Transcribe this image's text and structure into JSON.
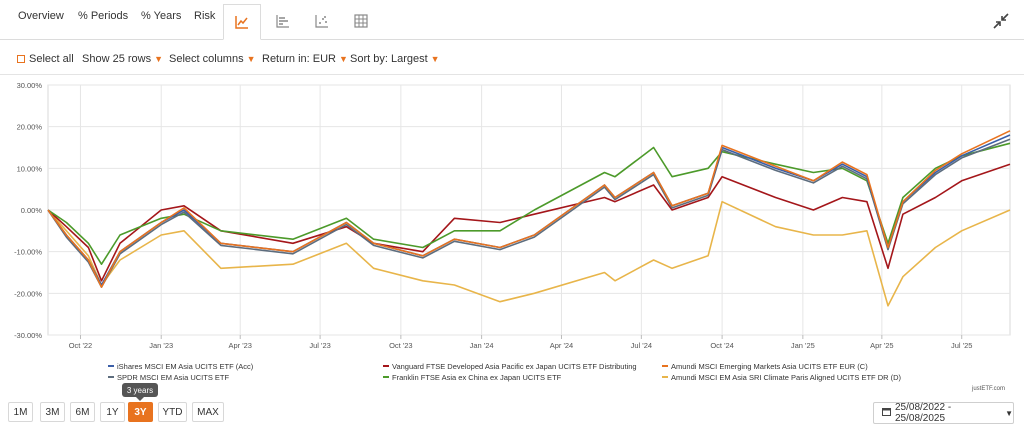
{
  "tabs": {
    "overview": "Overview",
    "periods": "% Periods",
    "years": "% Years",
    "risk": "Risk",
    "icons": [
      "line-chart-icon",
      "bar-chart-icon",
      "scatter-icon",
      "table-icon"
    ]
  },
  "toolbar": {
    "select_all": "Select all",
    "show_rows": "Show 25 rows",
    "select_columns": "Select columns",
    "return_in": "Return in: EUR",
    "sort_by": "Sort by: Largest"
  },
  "colors": {
    "accent": "#e8731f",
    "series": [
      "#3b5fa8",
      "#5d6d7e",
      "#a4161a",
      "#4c9a2a",
      "#e8731f",
      "#e8b54a"
    ]
  },
  "chart_data": {
    "type": "line",
    "title": "",
    "xlabel": "",
    "ylabel": "",
    "ylim": [
      -30,
      30
    ],
    "yticks": [
      30,
      20,
      10,
      0,
      -10,
      -20,
      -30
    ],
    "ytick_labels": [
      "30.00%",
      "20.00%",
      "10.00%",
      "0.00%",
      "-10.00%",
      "-20.00%",
      "-30.00%"
    ],
    "xlim": [
      "2022-08-25",
      "2025-08-25"
    ],
    "xticks": [
      "2022-10-01",
      "2023-01-01",
      "2023-04-01",
      "2023-07-01",
      "2023-10-01",
      "2024-01-01",
      "2024-04-01",
      "2024-07-01",
      "2024-10-01",
      "2025-01-01",
      "2025-04-01",
      "2025-07-01"
    ],
    "xtick_labels": [
      "Oct '22",
      "Jan '23",
      "Apr '23",
      "Jul '23",
      "Oct '23",
      "Jan '24",
      "Apr '24",
      "Jul '24",
      "Oct '24",
      "Jan '25",
      "Apr '25",
      "Jul '25"
    ],
    "grid": true,
    "legend": "bottom",
    "series": [
      {
        "name": "iShares MSCI EM Asia UCITS ETF (Acc)",
        "color": "#3b5fa8",
        "x": [
          "2022-08-25",
          "2022-09-15",
          "2022-10-10",
          "2022-10-25",
          "2022-11-15",
          "2023-01-01",
          "2023-01-27",
          "2023-03-10",
          "2023-05-31",
          "2023-07-31",
          "2023-08-31",
          "2023-10-26",
          "2023-12-01",
          "2024-01-22",
          "2024-03-01",
          "2024-05-20",
          "2024-06-01",
          "2024-07-15",
          "2024-08-05",
          "2024-09-15",
          "2024-10-01",
          "2024-12-01",
          "2025-01-13",
          "2025-02-15",
          "2025-03-15",
          "2025-04-08",
          "2025-04-25",
          "2025-06-01",
          "2025-07-01",
          "2025-08-25"
        ],
        "y": [
          0,
          -6,
          -12,
          -18,
          -10,
          -3,
          0,
          -8,
          -10,
          -3,
          -8,
          -11,
          -7,
          -9,
          -6,
          6,
          3,
          9,
          1,
          4,
          15,
          10,
          7,
          11,
          8,
          -9,
          2,
          9,
          13,
          18
        ]
      },
      {
        "name": "SPDR MSCI EM Asia UCITS ETF",
        "color": "#5d6d7e",
        "x": [
          "2022-08-25",
          "2022-09-15",
          "2022-10-10",
          "2022-10-25",
          "2022-11-15",
          "2023-01-01",
          "2023-01-27",
          "2023-03-10",
          "2023-05-31",
          "2023-07-31",
          "2023-08-31",
          "2023-10-26",
          "2023-12-01",
          "2024-01-22",
          "2024-03-01",
          "2024-05-20",
          "2024-06-01",
          "2024-07-15",
          "2024-08-05",
          "2024-09-15",
          "2024-10-01",
          "2024-12-01",
          "2025-01-13",
          "2025-02-15",
          "2025-03-15",
          "2025-04-08",
          "2025-04-25",
          "2025-06-01",
          "2025-07-01",
          "2025-08-25"
        ],
        "y": [
          0,
          -6.5,
          -12.5,
          -18.5,
          -10.5,
          -3.5,
          -0.5,
          -8.5,
          -10.5,
          -3.5,
          -8.5,
          -11.5,
          -7.5,
          -9.5,
          -6.5,
          5.5,
          2.5,
          8.5,
          0.5,
          3.5,
          14.5,
          9.5,
          6.5,
          10.5,
          7.5,
          -9.5,
          1.5,
          8.5,
          12.5,
          17
        ]
      },
      {
        "name": "Vanguard FTSE Developed Asia Pacific ex Japan UCITS ETF Distributing",
        "color": "#a4161a",
        "x": [
          "2022-08-25",
          "2022-09-15",
          "2022-10-10",
          "2022-10-25",
          "2022-11-15",
          "2023-01-01",
          "2023-01-27",
          "2023-03-10",
          "2023-05-31",
          "2023-07-31",
          "2023-08-31",
          "2023-10-26",
          "2023-12-01",
          "2024-01-22",
          "2024-03-01",
          "2024-05-20",
          "2024-06-01",
          "2024-07-15",
          "2024-08-05",
          "2024-09-15",
          "2024-10-01",
          "2024-12-01",
          "2025-01-13",
          "2025-02-15",
          "2025-03-15",
          "2025-04-08",
          "2025-04-25",
          "2025-06-01",
          "2025-07-01",
          "2025-08-25"
        ],
        "y": [
          0,
          -4,
          -9,
          -17,
          -8,
          0,
          1,
          -5,
          -8,
          -4,
          -8,
          -10,
          -2,
          -3,
          -1,
          3,
          2,
          6,
          0,
          3,
          8,
          3,
          0,
          3,
          2,
          -14,
          -1,
          3,
          7,
          11
        ]
      },
      {
        "name": "Franklin FTSE Asia ex China ex Japan UCITS ETF",
        "color": "#4c9a2a",
        "x": [
          "2022-08-25",
          "2022-09-15",
          "2022-10-10",
          "2022-10-25",
          "2022-11-15",
          "2023-01-01",
          "2023-01-27",
          "2023-03-10",
          "2023-05-31",
          "2023-07-31",
          "2023-08-31",
          "2023-10-26",
          "2023-12-01",
          "2024-01-22",
          "2024-03-01",
          "2024-05-20",
          "2024-06-01",
          "2024-07-15",
          "2024-08-05",
          "2024-09-15",
          "2024-10-01",
          "2024-12-01",
          "2025-01-13",
          "2025-02-15",
          "2025-03-15",
          "2025-04-08",
          "2025-04-25",
          "2025-06-01",
          "2025-07-01",
          "2025-08-25"
        ],
        "y": [
          0,
          -3,
          -8,
          -13,
          -6,
          -2,
          -1,
          -5,
          -7,
          -2,
          -7,
          -9,
          -5,
          -5,
          0,
          9,
          8,
          15,
          8,
          10,
          14,
          11,
          9,
          10,
          7,
          -8,
          3,
          10,
          13,
          16
        ]
      },
      {
        "name": "Amundi MSCI Emerging Markets Asia UCITS ETF EUR (C)",
        "color": "#e8731f",
        "x": [
          "2022-08-25",
          "2022-09-15",
          "2022-10-10",
          "2022-10-25",
          "2022-11-15",
          "2023-01-01",
          "2023-01-27",
          "2023-03-10",
          "2023-05-31",
          "2023-07-31",
          "2023-08-31",
          "2023-10-26",
          "2023-12-01",
          "2024-01-22",
          "2024-03-01",
          "2024-05-20",
          "2024-06-01",
          "2024-07-15",
          "2024-08-05",
          "2024-09-15",
          "2024-10-01",
          "2024-12-01",
          "2025-01-13",
          "2025-02-15",
          "2025-03-15",
          "2025-04-08",
          "2025-04-25",
          "2025-06-01",
          "2025-07-01",
          "2025-08-25"
        ],
        "y": [
          0,
          -6,
          -12,
          -18.5,
          -10,
          -3,
          0.5,
          -8,
          -10,
          -3,
          -8,
          -11,
          -7,
          -9,
          -6,
          6,
          3,
          9,
          1,
          4,
          15.5,
          10.5,
          7,
          11.5,
          8.5,
          -9,
          2,
          9.5,
          13.5,
          19
        ]
      },
      {
        "name": "Amundi MSCI EM Asia SRI Climate Paris Aligned UCITS ETF DR (D)",
        "color": "#e8b54a",
        "x": [
          "2022-08-25",
          "2022-09-15",
          "2022-10-10",
          "2022-10-25",
          "2022-11-15",
          "2023-01-01",
          "2023-01-27",
          "2023-03-10",
          "2023-05-31",
          "2023-07-31",
          "2023-08-31",
          "2023-10-26",
          "2023-12-01",
          "2024-01-22",
          "2024-03-01",
          "2024-05-20",
          "2024-06-01",
          "2024-07-15",
          "2024-08-05",
          "2024-09-15",
          "2024-10-01",
          "2024-12-01",
          "2025-01-13",
          "2025-02-15",
          "2025-03-15",
          "2025-04-08",
          "2025-04-25",
          "2025-06-01",
          "2025-07-01",
          "2025-08-25"
        ],
        "y": [
          0,
          -5,
          -11,
          -18,
          -12,
          -6,
          -5,
          -14,
          -13,
          -8,
          -14,
          -17,
          -18,
          -22,
          -20,
          -15,
          -17,
          -12,
          -14,
          -11,
          2,
          -4,
          -6,
          -6,
          -5,
          -23,
          -16,
          -9,
          -5,
          0
        ]
      }
    ]
  },
  "legend_entries": [
    "iShares MSCI EM Asia UCITS ETF (Acc)",
    "SPDR MSCI EM Asia UCITS ETF",
    "Vanguard FTSE Developed Asia Pacific ex Japan UCITS ETF Distributing",
    "Franklin FTSE Asia ex China ex Japan UCITS ETF",
    "Amundi MSCI Emerging Markets Asia UCITS ETF EUR (C)",
    "Amundi MSCI EM Asia SRI Climate Paris Aligned UCITS ETF DR (D)"
  ],
  "credit": "justETF.com",
  "range": {
    "buttons": [
      "1M",
      "3M",
      "6M",
      "1Y",
      "3Y",
      "YTD",
      "MAX"
    ],
    "active": "3Y",
    "tooltip": "3 years"
  },
  "date_range": "25/08/2022 - 25/08/2025"
}
